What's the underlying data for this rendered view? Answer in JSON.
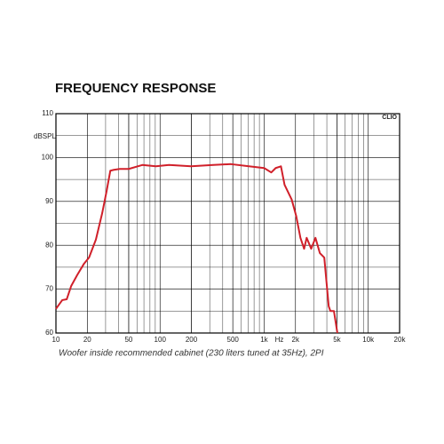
{
  "chart_data": {
    "type": "line",
    "title": "FREQUENCY RESPONSE",
    "y_label": "dBSPL",
    "x_unit": "Hz",
    "watermark": "CLIO",
    "caption": "Woofer inside recommended cabinet (230 liters tuned at 35Hz), 2PI",
    "x_scale": "log",
    "minor_grid": true,
    "color": "#d0202a",
    "xlim": [
      10,
      20000
    ],
    "ylim": [
      60,
      110
    ],
    "xticks": [
      10,
      20,
      50,
      100,
      200,
      500,
      {
        "value": 1000,
        "label": "1k"
      },
      {
        "value": 2000,
        "label": "2k"
      },
      {
        "value": 5000,
        "label": "5k"
      },
      {
        "value": 10000,
        "label": "10k"
      },
      {
        "value": 20000,
        "label": "20k"
      }
    ],
    "yticks": [
      60,
      70,
      80,
      90,
      100,
      110
    ],
    "x": [
      10,
      11.5,
      12.7,
      14,
      16,
      18.6,
      20.8,
      24.2,
      27.8,
      30.7,
      33.3,
      36,
      41,
      50,
      67.6,
      91,
      122,
      199,
      324,
      478,
      715,
      1000,
      1170,
      1290,
      1450,
      1570,
      1840,
      2030,
      2230,
      2420,
      2560,
      2830,
      3110,
      3430,
      3780,
      4170,
      4330,
      4680,
      5050
    ],
    "values": [
      65.5,
      67.5,
      67.7,
      70.7,
      73.2,
      75.8,
      77.2,
      81.3,
      87.3,
      92.4,
      97,
      97.2,
      97.4,
      97.4,
      98.3,
      98,
      98.3,
      98,
      98.3,
      98.5,
      98,
      97.6,
      96.6,
      97.6,
      98,
      93.8,
      90.4,
      86.7,
      81.7,
      79.2,
      81.7,
      79.2,
      81.7,
      78.2,
      77.2,
      66.1,
      65,
      65,
      60
    ]
  }
}
